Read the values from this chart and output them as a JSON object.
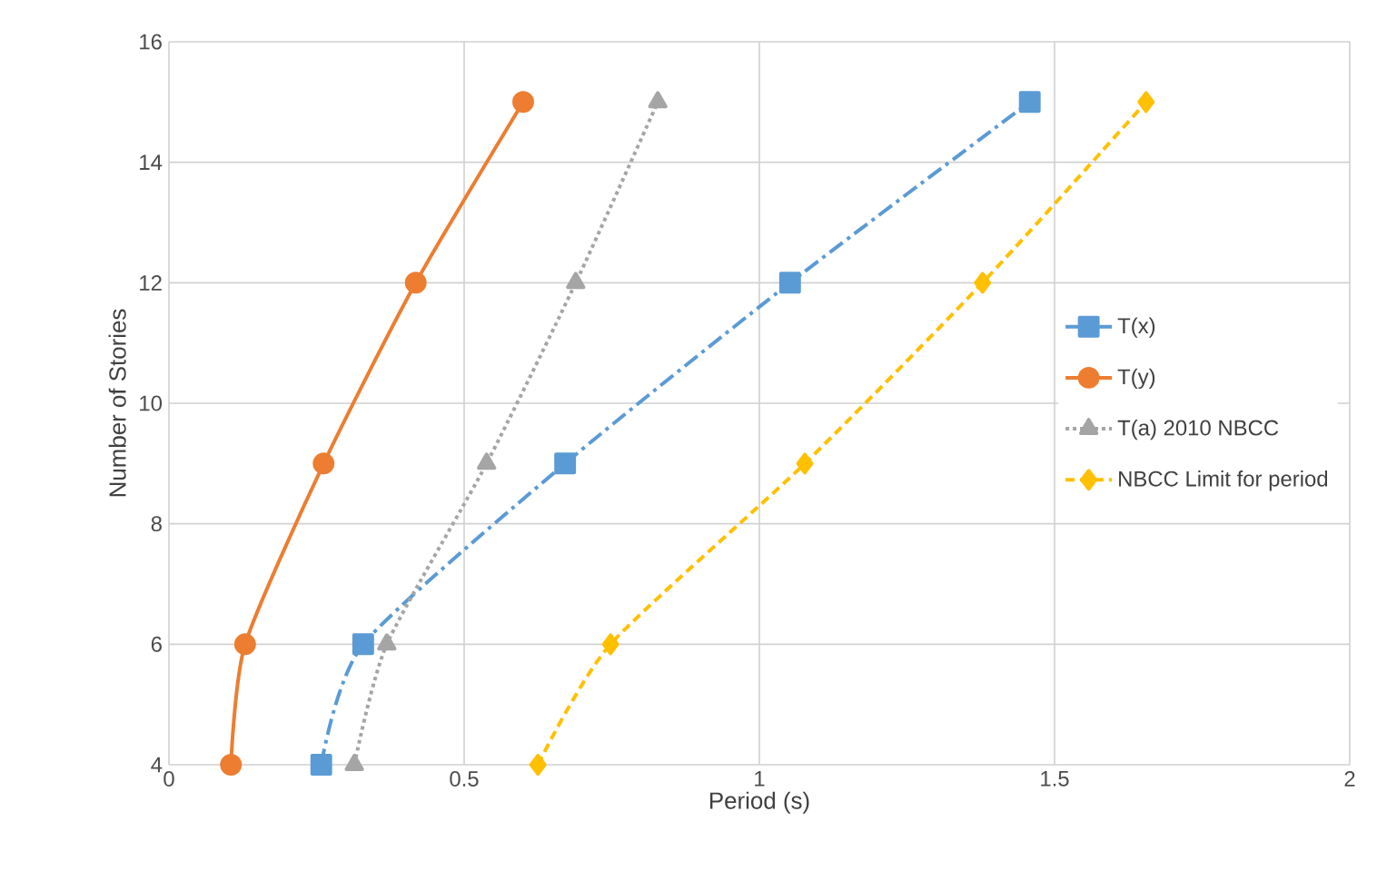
{
  "chart_data": {
    "type": "line",
    "xlabel": "Period (s)",
    "ylabel": "Number of Stories",
    "xlim": [
      0,
      2
    ],
    "ylim": [
      4,
      16
    ],
    "xticks": [
      0,
      0.5,
      1,
      1.5,
      2
    ],
    "yticks": [
      4,
      6,
      8,
      10,
      12,
      14,
      16
    ],
    "grid": true,
    "legend": "right",
    "series": [
      {
        "name": "T(x)",
        "color": "#5b9bd5",
        "marker": "square",
        "line_style": "dashdot",
        "x": [
          0.258,
          0.329,
          0.671,
          1.052,
          1.458
        ],
        "values": [
          4,
          6,
          9,
          12,
          15
        ]
      },
      {
        "name": "T(y)",
        "color": "#ed7d31",
        "marker": "circle",
        "line_style": "solid",
        "x": [
          0.105,
          0.129,
          0.262,
          0.418,
          0.6
        ],
        "values": [
          4,
          6,
          9,
          12,
          15
        ]
      },
      {
        "name": "T(a) 2010 NBCC",
        "color": "#a5a5a5",
        "marker": "triangle",
        "line_style": "dotted",
        "x": [
          0.314,
          0.369,
          0.538,
          0.689,
          0.828
        ],
        "values": [
          4,
          6,
          9,
          12,
          15
        ]
      },
      {
        "name": "NBCC Limit for period",
        "color": "#ffc000",
        "marker": "diamond",
        "line_style": "dashed",
        "x": [
          0.625,
          0.748,
          1.077,
          1.378,
          1.655
        ],
        "values": [
          4,
          6,
          9,
          12,
          15
        ]
      }
    ]
  }
}
